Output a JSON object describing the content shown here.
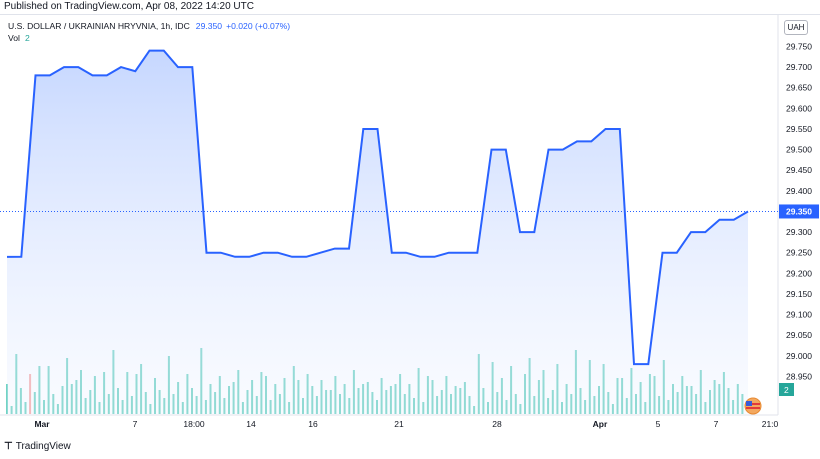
{
  "header": {
    "published": "Published on TradingView.com, Apr 08, 2022 14:20 UTC"
  },
  "legend": {
    "symbol": "U.S. DOLLAR / UKRAINIAN HRYVNIA, 1h, IDC",
    "last": "29.350",
    "change": "+0.020 (+0.07%)",
    "vol_label": "Vol",
    "vol_value": "2"
  },
  "currency": "UAH",
  "footer": {
    "brand": "TradingView"
  },
  "colors": {
    "line": "#2962ff",
    "area_top": "#bcd0ff",
    "volume_up": "#71d3c4",
    "volume_down": "#f7a9a7",
    "price_badge": "#2962ff",
    "vol_badge": "#26a69a"
  },
  "chart_data": {
    "type": "area",
    "title": "U.S. DOLLAR / UKRAINIAN HRYVNIA, 1h, IDC",
    "xlabel": "",
    "ylabel": "",
    "ylim": [
      28.905,
      29.79
    ],
    "grid": false,
    "x_ticks": [
      "Mar",
      "7",
      "18:00",
      "14",
      "16",
      "21",
      "28",
      "Apr",
      "5",
      "7",
      "21:0"
    ],
    "y_ticks": [
      "29.750",
      "29.700",
      "29.650",
      "29.600",
      "29.550",
      "29.500",
      "29.450",
      "29.400",
      "29.350",
      "29.300",
      "29.250",
      "29.200",
      "29.150",
      "29.100",
      "29.050",
      "29.000",
      "28.950"
    ],
    "last_price": 29.35,
    "last_volume": 2,
    "series": [
      {
        "values": [
          29.24,
          29.24,
          29.68,
          29.68,
          29.7,
          29.7,
          29.68,
          29.68,
          29.7,
          29.69,
          29.74,
          29.74,
          29.7,
          29.7,
          29.25,
          29.25,
          29.24,
          29.24,
          29.25,
          29.25,
          29.24,
          29.24,
          29.25,
          29.26,
          29.26,
          29.55,
          29.55,
          29.25,
          29.25,
          29.24,
          29.24,
          29.25,
          29.25,
          29.25,
          29.5,
          29.5,
          29.3,
          29.3,
          29.5,
          29.5,
          29.52,
          29.52,
          29.55,
          29.55,
          28.98,
          28.98,
          29.25,
          29.25,
          29.3,
          29.3,
          29.33,
          29.33,
          29.35
        ]
      }
    ]
  }
}
